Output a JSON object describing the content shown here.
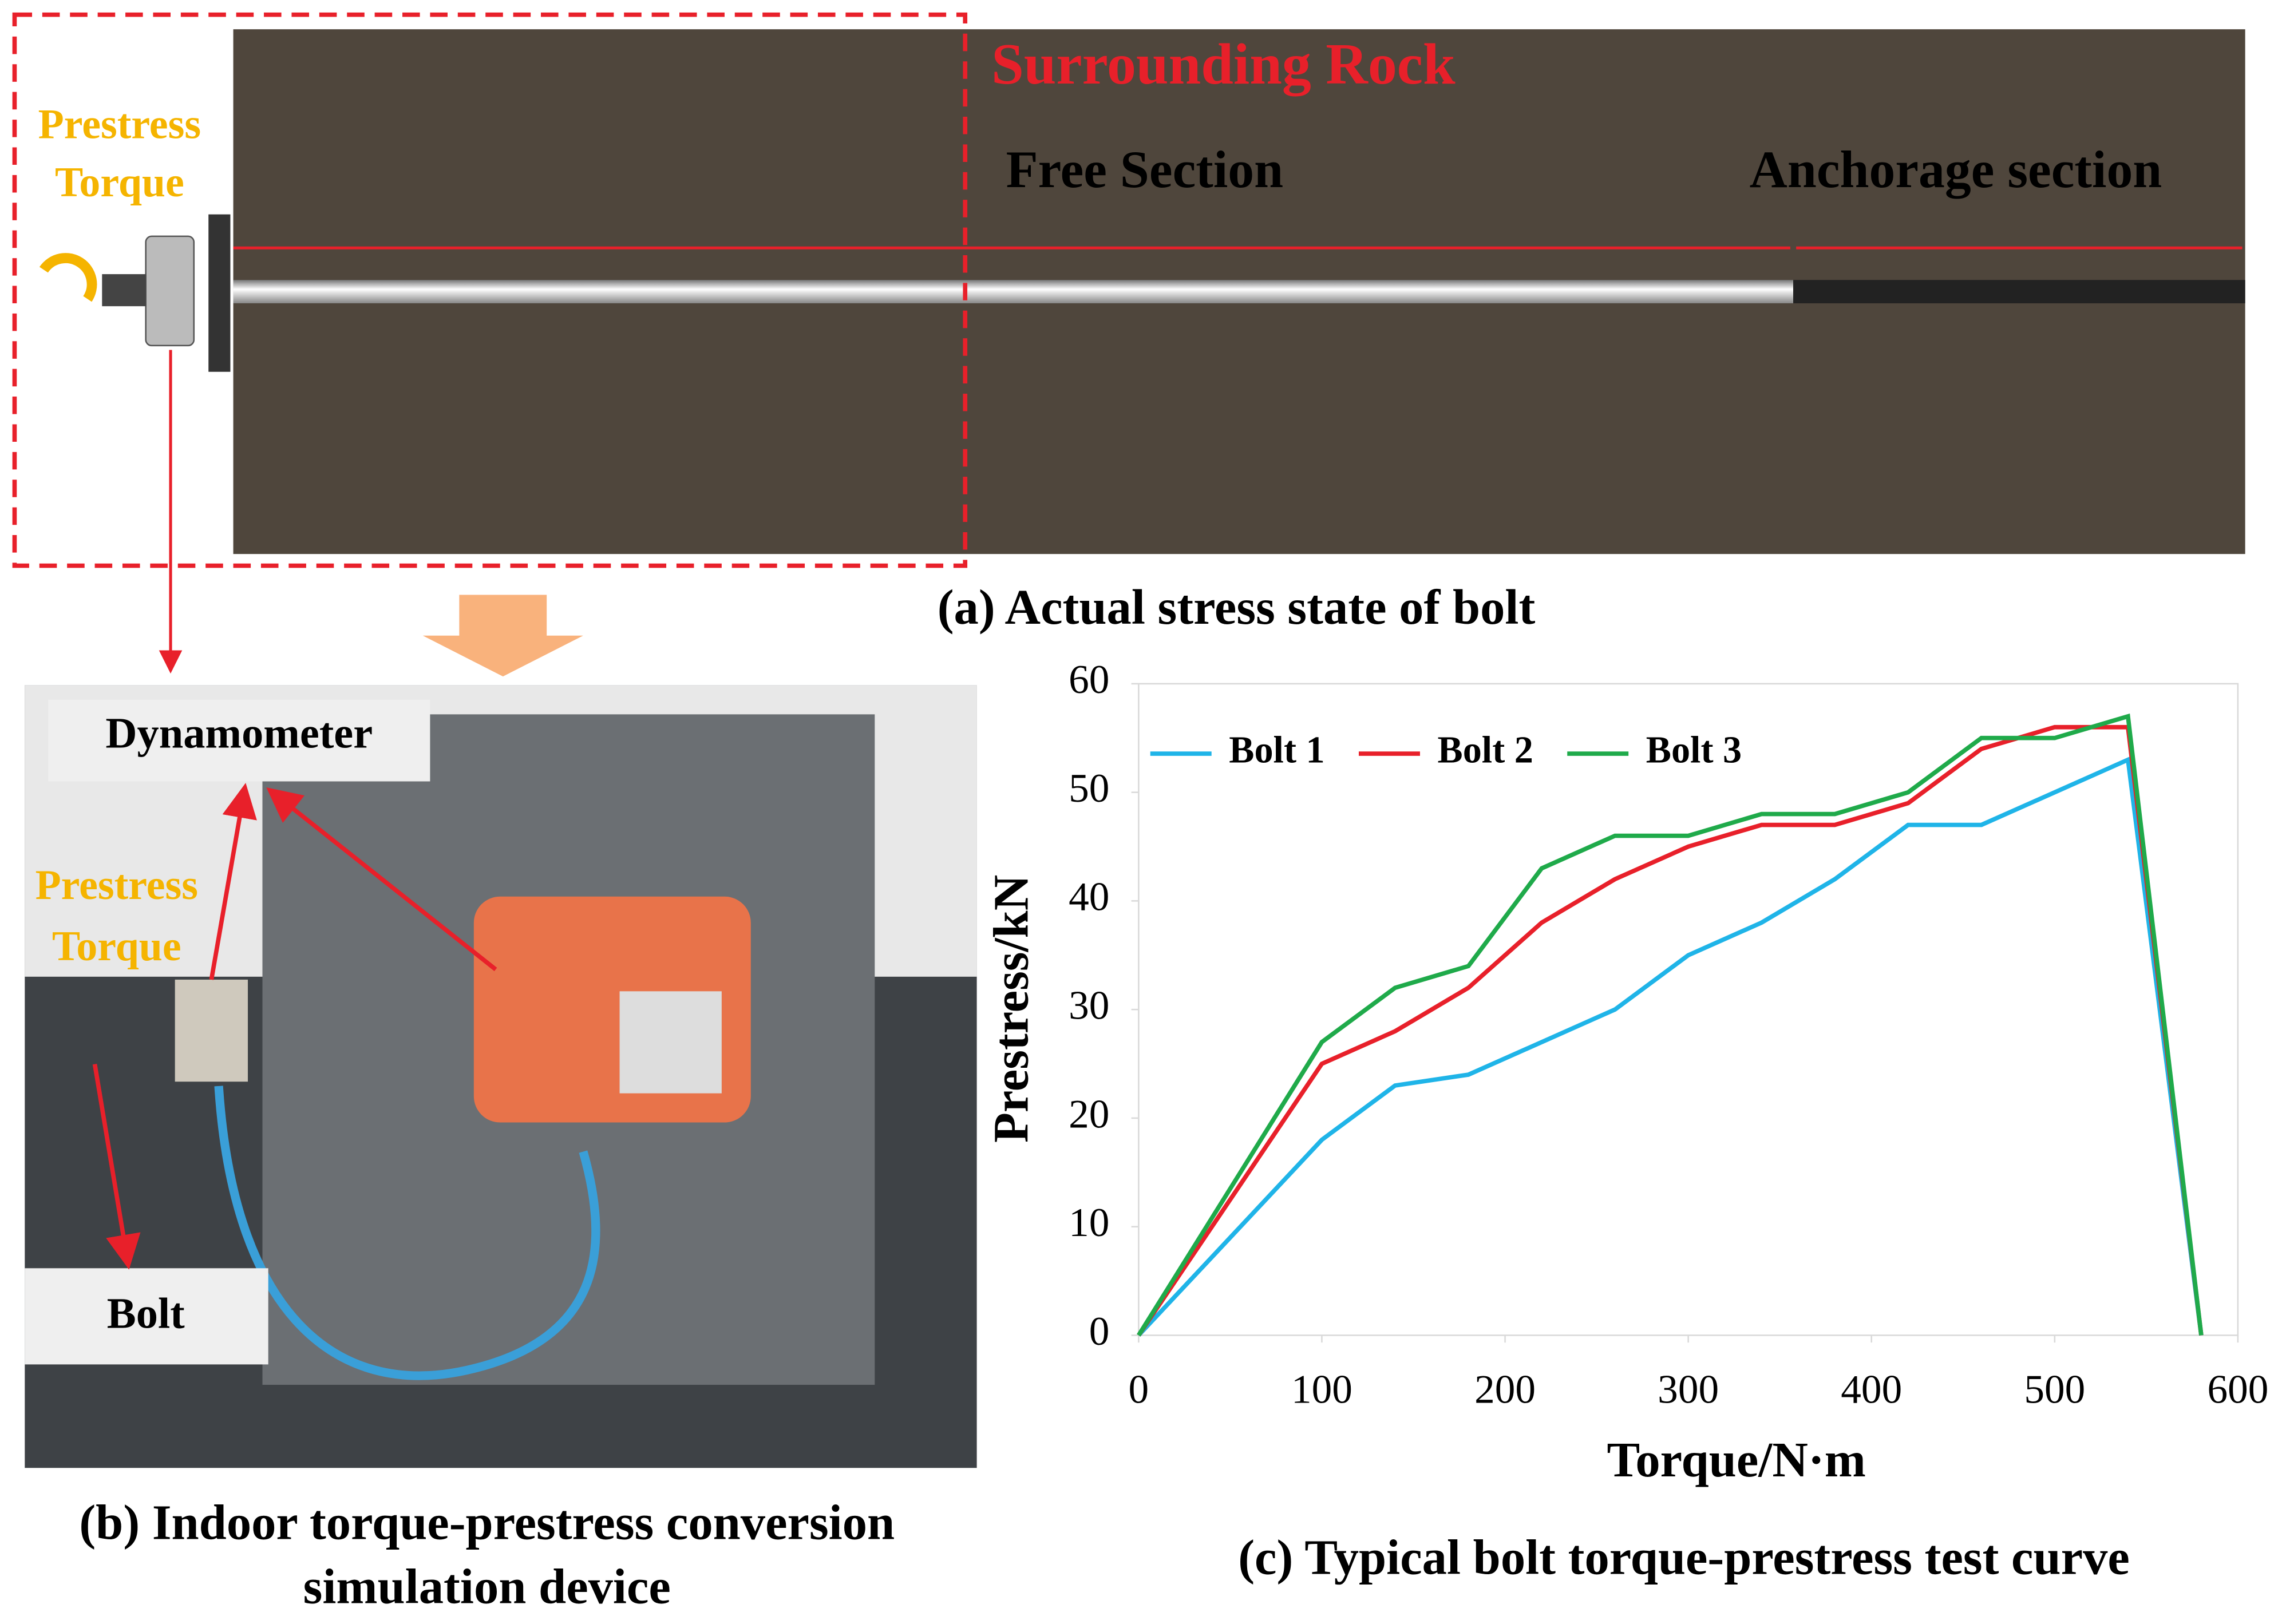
{
  "panel_a": {
    "rock_label": "Surrounding Rock",
    "free_label": "Free Section",
    "anchor_label": "Anchorage section",
    "torque_label": [
      "Prestress",
      "Torque"
    ],
    "caption": "(a) Actual stress state of bolt"
  },
  "panel_b": {
    "dynamometer_label": "Dynamometer",
    "torque_label": [
      "Prestress",
      "Torque"
    ],
    "bolt_label": "Bolt",
    "caption": [
      "(b) Indoor torque-prestress conversion",
      "simulation device"
    ]
  },
  "chart_data": {
    "type": "line",
    "caption": "(c) Typical bolt torque-prestress test curve",
    "x_label": "Torque/N·m",
    "y_label": "Prestress/kN",
    "x": [
      0,
      100,
      140,
      180,
      220,
      260,
      300,
      340,
      380,
      420,
      460,
      500,
      540,
      580
    ],
    "series": [
      {
        "name": "Bolt 1",
        "color": "#1fb4e8",
        "values": [
          0,
          18,
          23,
          24,
          27,
          30,
          35,
          38,
          42,
          47,
          47,
          50,
          53,
          0
        ]
      },
      {
        "name": "Bolt 2",
        "color": "#e8202a",
        "values": [
          0,
          25,
          28,
          32,
          38,
          42,
          45,
          47,
          47,
          49,
          54,
          56,
          56,
          0
        ]
      },
      {
        "name": "Bolt 3",
        "color": "#1faa4a",
        "values": [
          0,
          27,
          32,
          34,
          43,
          46,
          46,
          48,
          48,
          50,
          55,
          55,
          57,
          0
        ]
      }
    ],
    "xlim": [
      0,
      600
    ],
    "ylim": [
      0,
      60
    ],
    "xticks": [
      0,
      100,
      200,
      300,
      400,
      500,
      600
    ],
    "yticks": [
      0,
      10,
      20,
      30,
      40,
      50,
      60
    ],
    "grid": false,
    "legend": "top-left"
  }
}
